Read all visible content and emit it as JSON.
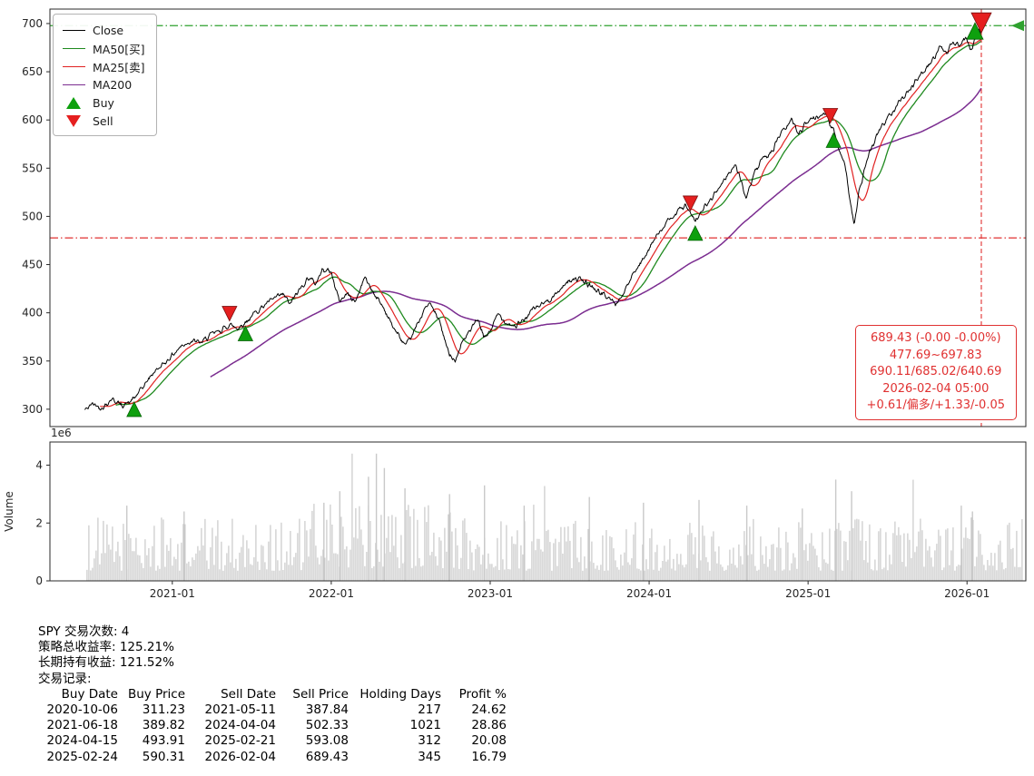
{
  "chart_data": {
    "type": "line",
    "panels": [
      "price",
      "volume"
    ],
    "layout": {
      "x_range": [
        2020.23,
        2026.37
      ],
      "y_range": [
        282,
        715
      ],
      "grid": false,
      "legend_position": "upper-left"
    },
    "price_axis": {
      "ticks": [
        300,
        350,
        400,
        450,
        500,
        550,
        600,
        650,
        700
      ]
    },
    "x_ticks": [
      {
        "label": "2021-01",
        "t": 2021.0
      },
      {
        "label": "2022-01",
        "t": 2022.0
      },
      {
        "label": "2023-01",
        "t": 2023.0
      },
      {
        "label": "2024-01",
        "t": 2024.0
      },
      {
        "label": "2025-01",
        "t": 2025.0
      },
      {
        "label": "2026-01",
        "t": 2026.0
      }
    ],
    "series_colors": {
      "close": "#000000",
      "ma50": "#1f8a1f",
      "ma25": "#e02222",
      "ma200": "#7b2d90"
    },
    "ma_windows": {
      "ma25": 25,
      "ma50": 50,
      "ma200": 200
    },
    "last_price": 689.43,
    "close_keypoints": [
      [
        2020.45,
        299
      ],
      [
        2020.5,
        306
      ],
      [
        2020.56,
        301
      ],
      [
        2020.62,
        311
      ],
      [
        2020.68,
        304
      ],
      [
        2020.73,
        307
      ],
      [
        2020.76,
        311.2
      ],
      [
        2020.82,
        324
      ],
      [
        2020.88,
        338
      ],
      [
        2020.94,
        346
      ],
      [
        2021.0,
        356
      ],
      [
        2021.06,
        366
      ],
      [
        2021.12,
        371
      ],
      [
        2021.18,
        369
      ],
      [
        2021.25,
        378
      ],
      [
        2021.31,
        382
      ],
      [
        2021.36,
        387.8
      ],
      [
        2021.41,
        384
      ],
      [
        2021.46,
        389.8
      ],
      [
        2021.52,
        400
      ],
      [
        2021.58,
        408
      ],
      [
        2021.64,
        415
      ],
      [
        2021.7,
        419
      ],
      [
        2021.74,
        409
      ],
      [
        2021.8,
        424
      ],
      [
        2021.86,
        437
      ],
      [
        2021.9,
        430
      ],
      [
        2021.95,
        446
      ],
      [
        2022.0,
        442
      ],
      [
        2022.05,
        412
      ],
      [
        2022.1,
        420
      ],
      [
        2022.15,
        411
      ],
      [
        2022.21,
        437
      ],
      [
        2022.27,
        420
      ],
      [
        2022.33,
        405
      ],
      [
        2022.38,
        388
      ],
      [
        2022.44,
        372
      ],
      [
        2022.47,
        365
      ],
      [
        2022.52,
        380
      ],
      [
        2022.58,
        402
      ],
      [
        2022.62,
        410
      ],
      [
        2022.68,
        392
      ],
      [
        2022.73,
        362
      ],
      [
        2022.78,
        350
      ],
      [
        2022.83,
        372
      ],
      [
        2022.88,
        382
      ],
      [
        2022.92,
        394
      ],
      [
        2022.96,
        374
      ],
      [
        2023.0,
        381
      ],
      [
        2023.05,
        399
      ],
      [
        2023.1,
        390
      ],
      [
        2023.16,
        386
      ],
      [
        2023.21,
        392
      ],
      [
        2023.27,
        404
      ],
      [
        2023.33,
        409
      ],
      [
        2023.4,
        417
      ],
      [
        2023.46,
        428
      ],
      [
        2023.52,
        436
      ],
      [
        2023.57,
        434
      ],
      [
        2023.63,
        428
      ],
      [
        2023.69,
        421
      ],
      [
        2023.75,
        415
      ],
      [
        2023.79,
        409
      ],
      [
        2023.84,
        420
      ],
      [
        2023.89,
        437
      ],
      [
        2023.95,
        452
      ],
      [
        2024.0,
        468
      ],
      [
        2024.06,
        482
      ],
      [
        2024.12,
        495
      ],
      [
        2024.18,
        506
      ],
      [
        2024.23,
        511
      ],
      [
        2024.26,
        502.3
      ],
      [
        2024.29,
        493.9
      ],
      [
        2024.34,
        508
      ],
      [
        2024.4,
        520
      ],
      [
        2024.45,
        532
      ],
      [
        2024.5,
        545
      ],
      [
        2024.54,
        553
      ],
      [
        2024.58,
        538
      ],
      [
        2024.61,
        516
      ],
      [
        2024.65,
        540
      ],
      [
        2024.7,
        556
      ],
      [
        2024.74,
        562
      ],
      [
        2024.78,
        570
      ],
      [
        2024.82,
        584
      ],
      [
        2024.86,
        592
      ],
      [
        2024.9,
        600
      ],
      [
        2024.94,
        586
      ],
      [
        2024.98,
        596
      ],
      [
        2025.02,
        601
      ],
      [
        2025.07,
        604
      ],
      [
        2025.11,
        609
      ],
      [
        2025.14,
        593.1
      ],
      [
        2025.16,
        590.3
      ],
      [
        2025.19,
        572
      ],
      [
        2025.23,
        556
      ],
      [
        2025.26,
        522
      ],
      [
        2025.29,
        490
      ],
      [
        2025.32,
        524
      ],
      [
        2025.36,
        552
      ],
      [
        2025.4,
        572
      ],
      [
        2025.45,
        590
      ],
      [
        2025.5,
        602
      ],
      [
        2025.55,
        614
      ],
      [
        2025.6,
        625
      ],
      [
        2025.65,
        634
      ],
      [
        2025.7,
        645
      ],
      [
        2025.74,
        652
      ],
      [
        2025.79,
        664
      ],
      [
        2025.83,
        676
      ],
      [
        2025.87,
        668
      ],
      [
        2025.91,
        681
      ],
      [
        2025.95,
        677
      ],
      [
        2025.99,
        687
      ],
      [
        2026.02,
        672
      ],
      [
        2026.05,
        682
      ],
      [
        2026.07,
        694
      ],
      [
        2026.09,
        689.43
      ]
    ],
    "buy_signals": [
      {
        "t": 2020.76,
        "price": 311.23
      },
      {
        "t": 2021.46,
        "price": 389.82
      },
      {
        "t": 2024.29,
        "price": 493.91
      },
      {
        "t": 2025.16,
        "price": 590.31
      }
    ],
    "sell_signals": [
      {
        "t": 2021.36,
        "price": 387.84
      },
      {
        "t": 2024.26,
        "price": 502.33
      },
      {
        "t": 2025.14,
        "price": 593.08
      },
      {
        "t": 2026.09,
        "price": 689.43,
        "highlight": true
      }
    ],
    "ref_lines": {
      "upper": 697.83,
      "upper_color": "#2fa12f",
      "lower": 477.69,
      "lower_color": "#e03131",
      "vline_t": 2026.09,
      "vline_color": "#e03131"
    },
    "annotation_box": {
      "color": "#e03131",
      "lines": [
        "689.43 (-0.00 -0.00%)",
        "477.69~697.83",
        "690.11/685.02/640.69",
        "2026-02-04 05:00",
        "+0.61/偏多/+1.33/-0.05"
      ]
    },
    "volume": {
      "label": "Volume",
      "offset_label": "1e6",
      "ticks": [
        0,
        2,
        4
      ],
      "axis_max": 4.8,
      "bar_color": "#c9c9c9",
      "spikes": [
        {
          "t": 2020.71,
          "v": 2.6
        },
        {
          "t": 2021.07,
          "v": 2.4
        },
        {
          "t": 2021.95,
          "v": 2.7
        },
        {
          "t": 2022.05,
          "v": 3.1
        },
        {
          "t": 2022.23,
          "v": 3.6
        },
        {
          "t": 2022.28,
          "v": 4.4
        },
        {
          "t": 2022.33,
          "v": 3.9
        },
        {
          "t": 2022.46,
          "v": 3.2
        },
        {
          "t": 2022.74,
          "v": 3.0
        },
        {
          "t": 2022.96,
          "v": 3.3
        },
        {
          "t": 2023.21,
          "v": 2.6
        },
        {
          "t": 2023.62,
          "v": 2.9
        },
        {
          "t": 2023.96,
          "v": 2.7
        },
        {
          "t": 2024.31,
          "v": 2.8
        },
        {
          "t": 2024.61,
          "v": 2.6
        },
        {
          "t": 2024.96,
          "v": 2.5
        },
        {
          "t": 2025.17,
          "v": 3.5
        },
        {
          "t": 2025.27,
          "v": 3.1
        },
        {
          "t": 2025.96,
          "v": 2.6
        },
        {
          "t": 2026.03,
          "v": 2.4
        }
      ]
    }
  },
  "legend": {
    "items": [
      {
        "label": "Close",
        "type": "line",
        "color": "#000000",
        "icon": "close-line-swatch"
      },
      {
        "label": "MA50[买]",
        "type": "line",
        "color": "#1f8a1f",
        "icon": "ma50-line-swatch"
      },
      {
        "label": "MA25[卖]",
        "type": "line",
        "color": "#e02222",
        "icon": "ma25-line-swatch"
      },
      {
        "label": "MA200",
        "type": "line",
        "color": "#7b2d90",
        "icon": "ma200-line-swatch"
      },
      {
        "label": "Buy",
        "type": "marker-up",
        "color": "#0ea00e",
        "icon": "buy-triangle-icon"
      },
      {
        "label": "Sell",
        "type": "marker-down",
        "color": "#e51f1f",
        "icon": "sell-triangle-icon"
      }
    ]
  },
  "summary": {
    "lines": [
      "SPY 交易次数: 4",
      "策略总收益率: 125.21%",
      "长期持有收益: 121.52%"
    ]
  },
  "trades": {
    "title": "交易记录:",
    "columns": [
      "Buy Date",
      "Buy Price",
      "Sell Date",
      "Sell Price",
      "Holding Days",
      "Profit %"
    ],
    "rows": [
      [
        "2020-10-06",
        "311.23",
        "2021-05-11",
        "387.84",
        "217",
        "24.62"
      ],
      [
        "2021-06-18",
        "389.82",
        "2024-04-04",
        "502.33",
        "1021",
        "28.86"
      ],
      [
        "2024-04-15",
        "493.91",
        "2025-02-21",
        "593.08",
        "312",
        "20.08"
      ],
      [
        "2025-02-24",
        "590.31",
        "2026-02-04",
        "689.43",
        "345",
        "16.79"
      ]
    ]
  }
}
